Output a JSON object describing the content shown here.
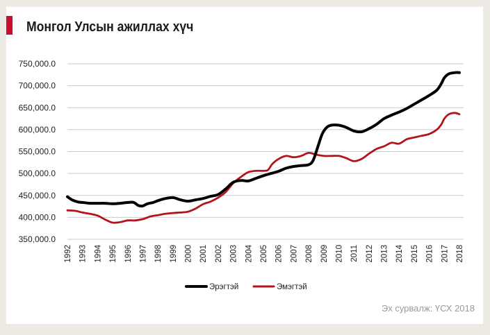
{
  "title": "Монгол Улсын ажиллах хүч",
  "source": "Эх сурвалж: ҮСХ 2018",
  "colors": {
    "accent": "#c8102e",
    "male": "#000000",
    "female": "#b3141b",
    "grid": "#c9c9c9"
  },
  "chart_data": {
    "type": "line",
    "title": "Монгол Улсын ажиллах хүч",
    "xlabel": "",
    "ylabel": "",
    "xlim": [
      1992,
      2018
    ],
    "ylim": [
      350000,
      750000
    ],
    "y_ticks": [
      {
        "value": 750000,
        "label": "750,000.0"
      },
      {
        "value": 700000,
        "label": "700,000.0"
      },
      {
        "value": 650000,
        "label": "650,000.0"
      },
      {
        "value": 600000,
        "label": "600,000.0"
      },
      {
        "value": 550000,
        "label": "550,000.0"
      },
      {
        "value": 500000,
        "label": "500,000.0"
      },
      {
        "value": 450000,
        "label": "450,000.0"
      },
      {
        "value": 400000,
        "label": "400,000.0"
      },
      {
        "value": 350000,
        "label": "350,000.0"
      }
    ],
    "x_tick_labels": [
      "1992",
      "1993",
      "1994",
      "1995",
      "1996",
      "1997",
      "1998",
      "1999",
      "2000",
      "2001",
      "2002",
      "2003",
      "2004",
      "2005",
      "2006",
      "2007",
      "2008",
      "2009",
      "2010",
      "2011",
      "2012",
      "2013",
      "2014",
      "2015",
      "2016",
      "2017",
      "2018"
    ],
    "grid": "horizontal",
    "legend_position": "bottom",
    "series": [
      {
        "name": "Эрэгтэй",
        "color": "#000000",
        "points": [
          [
            1992,
            447000
          ],
          [
            1992.3,
            440000
          ],
          [
            1992.7,
            435000
          ],
          [
            1993,
            434000
          ],
          [
            1993.5,
            432000
          ],
          [
            1994,
            432000
          ],
          [
            1994.5,
            432000
          ],
          [
            1995,
            431000
          ],
          [
            1995.5,
            432000
          ],
          [
            1996,
            434000
          ],
          [
            1996.4,
            434000
          ],
          [
            1996.7,
            427000
          ],
          [
            1997,
            426000
          ],
          [
            1997.3,
            431000
          ],
          [
            1997.7,
            434000
          ],
          [
            1998,
            438000
          ],
          [
            1998.5,
            443000
          ],
          [
            1999,
            445000
          ],
          [
            1999.5,
            440000
          ],
          [
            2000,
            437000
          ],
          [
            2000.5,
            440000
          ],
          [
            2001,
            443000
          ],
          [
            2001.5,
            448000
          ],
          [
            2002,
            452000
          ],
          [
            2002.5,
            465000
          ],
          [
            2003,
            480000
          ],
          [
            2003.5,
            484000
          ],
          [
            2004,
            483000
          ],
          [
            2004.5,
            489000
          ],
          [
            2005,
            495000
          ],
          [
            2005.5,
            500000
          ],
          [
            2006,
            505000
          ],
          [
            2006.5,
            512000
          ],
          [
            2007,
            516000
          ],
          [
            2007.5,
            518000
          ],
          [
            2008,
            520000
          ],
          [
            2008.3,
            530000
          ],
          [
            2008.6,
            560000
          ],
          [
            2008.9,
            590000
          ],
          [
            2009.2,
            605000
          ],
          [
            2009.5,
            610000
          ],
          [
            2010,
            610000
          ],
          [
            2010.5,
            605000
          ],
          [
            2011,
            597000
          ],
          [
            2011.5,
            595000
          ],
          [
            2012,
            602000
          ],
          [
            2012.5,
            612000
          ],
          [
            2013,
            625000
          ],
          [
            2013.5,
            633000
          ],
          [
            2014,
            640000
          ],
          [
            2014.5,
            648000
          ],
          [
            2015,
            658000
          ],
          [
            2015.5,
            668000
          ],
          [
            2016,
            678000
          ],
          [
            2016.5,
            690000
          ],
          [
            2016.8,
            705000
          ],
          [
            2017,
            718000
          ],
          [
            2017.3,
            727000
          ],
          [
            2017.7,
            730000
          ],
          [
            2018,
            730000
          ]
        ]
      },
      {
        "name": "Эмэгтэй",
        "color": "#b3141b",
        "points": [
          [
            1992,
            416000
          ],
          [
            1992.5,
            415000
          ],
          [
            1993,
            411000
          ],
          [
            1993.5,
            408000
          ],
          [
            1994,
            404000
          ],
          [
            1994.5,
            395000
          ],
          [
            1995,
            388000
          ],
          [
            1995.5,
            389000
          ],
          [
            1996,
            393000
          ],
          [
            1996.5,
            393000
          ],
          [
            1997,
            396000
          ],
          [
            1997.5,
            402000
          ],
          [
            1998,
            405000
          ],
          [
            1998.5,
            408000
          ],
          [
            1999,
            410000
          ],
          [
            1999.5,
            411000
          ],
          [
            2000,
            413000
          ],
          [
            2000.5,
            420000
          ],
          [
            2001,
            430000
          ],
          [
            2001.5,
            436000
          ],
          [
            2002,
            445000
          ],
          [
            2002.5,
            458000
          ],
          [
            2003,
            478000
          ],
          [
            2003.5,
            492000
          ],
          [
            2004,
            503000
          ],
          [
            2004.5,
            506000
          ],
          [
            2005,
            506000
          ],
          [
            2005.3,
            508000
          ],
          [
            2005.6,
            522000
          ],
          [
            2006,
            533000
          ],
          [
            2006.5,
            540000
          ],
          [
            2007,
            537000
          ],
          [
            2007.5,
            540000
          ],
          [
            2008,
            547000
          ],
          [
            2008.5,
            543000
          ],
          [
            2009,
            540000
          ],
          [
            2009.5,
            540000
          ],
          [
            2010,
            540000
          ],
          [
            2010.5,
            535000
          ],
          [
            2011,
            528000
          ],
          [
            2011.5,
            533000
          ],
          [
            2012,
            545000
          ],
          [
            2012.5,
            556000
          ],
          [
            2013,
            562000
          ],
          [
            2013.5,
            570000
          ],
          [
            2014,
            568000
          ],
          [
            2014.5,
            578000
          ],
          [
            2015,
            582000
          ],
          [
            2015.5,
            586000
          ],
          [
            2016,
            590000
          ],
          [
            2016.5,
            600000
          ],
          [
            2016.8,
            612000
          ],
          [
            2017,
            625000
          ],
          [
            2017.3,
            635000
          ],
          [
            2017.7,
            638000
          ],
          [
            2018,
            635000
          ]
        ]
      }
    ]
  }
}
